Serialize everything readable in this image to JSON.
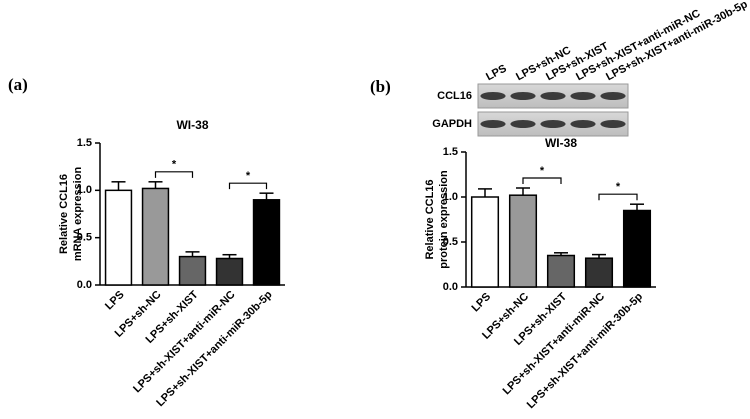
{
  "chart_data": [
    {
      "type": "bar",
      "panel_label": "(a)",
      "title": "WI-38",
      "y_label": [
        "Relative CCL16",
        "mRNA expression"
      ],
      "categories": [
        "LPS",
        "LPS+sh-NC",
        "LPS+sh-XIST",
        "LPS+sh-XIST+anti-miR-NC",
        "LPS+sh-XIST+anti-miR-30b-5p"
      ],
      "values": [
        1.0,
        1.02,
        0.3,
        0.28,
        0.9
      ],
      "errors": [
        0.09,
        0.07,
        0.05,
        0.04,
        0.07
      ],
      "colors": [
        "#ffffff",
        "#999999",
        "#666666",
        "#333333",
        "#000000"
      ],
      "ylim": [
        0,
        1.5
      ],
      "yticks": [
        {
          "value": 0,
          "label": "0.0"
        },
        0.5,
        {
          "value": 1,
          "label": "1.0"
        },
        1.5
      ],
      "significance": [
        {
          "label": "*",
          "between": [
            1,
            2
          ]
        },
        {
          "label": "*",
          "between": [
            3,
            4
          ]
        }
      ]
    },
    {
      "type": "bar",
      "panel_label": "(b)",
      "title": "WI-38",
      "y_label": [
        "Relative CCL16",
        "protein expression"
      ],
      "blot_rows": [
        "CCL16",
        "GAPDH"
      ],
      "categories": [
        "LPS",
        "LPS+sh-NC",
        "LPS+sh-XIST",
        "LPS+sh-XIST+anti-miR-NC",
        "LPS+sh-XIST+anti-miR-30b-5p"
      ],
      "values": [
        1.0,
        1.02,
        0.35,
        0.32,
        0.85
      ],
      "errors": [
        0.09,
        0.08,
        0.03,
        0.04,
        0.07
      ],
      "colors": [
        "#ffffff",
        "#999999",
        "#666666",
        "#333333",
        "#000000"
      ],
      "ylim": [
        0,
        1.5
      ],
      "yticks": [
        {
          "value": 0,
          "label": "0.0"
        },
        0.5,
        {
          "value": 1,
          "label": "1.0"
        },
        1.5
      ],
      "significance": [
        {
          "label": "*",
          "between": [
            1,
            2
          ]
        },
        {
          "label": "*",
          "between": [
            3,
            4
          ]
        }
      ]
    }
  ]
}
